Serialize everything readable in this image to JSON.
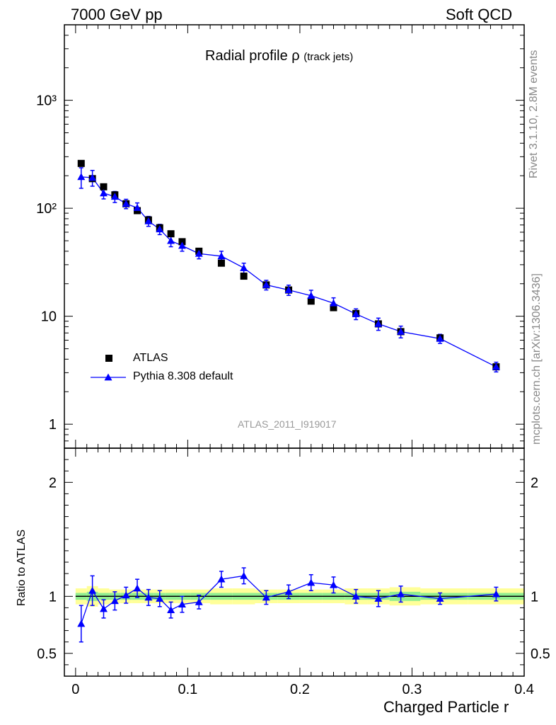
{
  "header": {
    "left": "7000 GeV pp",
    "right": "Soft QCD"
  },
  "side_text": {
    "rivet": "Rivet 3.1.10,  2.8M events",
    "mcplots": "mcplots.cern.ch [arXiv:1306.3436]"
  },
  "plot_title": {
    "main": "Radial profile ρ",
    "sub": "(track jets)"
  },
  "analysis_id": "ATLAS_2011_I919017",
  "legend": {
    "data_label": "ATLAS",
    "mc_label": "Pythia 8.308 default"
  },
  "ratio_ylabel": "Ratio to ATLAS",
  "xlabel": "Charged Particle r",
  "colors": {
    "mc": "#0000ff",
    "data": "#000000",
    "band_inner": "#90ee90",
    "band_outer": "#ffff99"
  },
  "chart_data": {
    "type": "scatter",
    "x_range": [
      -0.01,
      0.4
    ],
    "upper_y_range": [
      0.6,
      5000
    ],
    "upper_y_scale": "log",
    "ratio_y_range": [
      0.3,
      2.3
    ],
    "x_ticks": [
      "0",
      "0.1",
      "0.2",
      "0.3",
      "0.4"
    ],
    "upper_y_ticks": [
      "1",
      "10",
      "10²",
      "10³"
    ],
    "ratio_y_ticks": [
      "0.5",
      "1",
      "2"
    ],
    "x": [
      0.005,
      0.015,
      0.025,
      0.035,
      0.045,
      0.055,
      0.065,
      0.075,
      0.085,
      0.095,
      0.11,
      0.13,
      0.15,
      0.17,
      0.19,
      0.21,
      0.23,
      0.25,
      0.27,
      0.29,
      0.325,
      0.375
    ],
    "series": [
      {
        "name": "ATLAS",
        "values": [
          260,
          188,
          158,
          133,
          110,
          95,
          78,
          66,
          58,
          49,
          40,
          31,
          23.5,
          19.5,
          17.5,
          13.8,
          12.0,
          10.6,
          8.5,
          7.2,
          6.3,
          3.4
        ]
      },
      {
        "name": "Pythia 8.308 default",
        "values": [
          195,
          192,
          138,
          128,
          110,
          101,
          76,
          64,
          50,
          45,
          38,
          36,
          28,
          19.5,
          17.5,
          15.5,
          13.2,
          10.5,
          8.5,
          7.2,
          6.2,
          3.4
        ],
        "errors": [
          42,
          32,
          16,
          15,
          11,
          11,
          8,
          7,
          6,
          5,
          4,
          4,
          3,
          2,
          1.9,
          1.9,
          1.6,
          1.2,
          1.1,
          0.9,
          0.6,
          0.35
        ]
      }
    ],
    "ratio": {
      "values": [
        0.76,
        1.05,
        0.89,
        0.96,
        1.01,
        1.07,
        0.99,
        0.98,
        0.88,
        0.93,
        0.95,
        1.15,
        1.18,
        0.99,
        1.04,
        1.12,
        1.1,
        1.0,
        0.98,
        1.02,
        0.98,
        1.02
      ],
      "errors": [
        0.16,
        0.13,
        0.08,
        0.08,
        0.07,
        0.08,
        0.07,
        0.07,
        0.07,
        0.07,
        0.06,
        0.07,
        0.07,
        0.06,
        0.06,
        0.07,
        0.07,
        0.06,
        0.07,
        0.07,
        0.05,
        0.06
      ],
      "band_inner": [
        0.03,
        0.04,
        0.03,
        0.03,
        0.03,
        0.03,
        0.03,
        0.03,
        0.03,
        0.03,
        0.03,
        0.03,
        0.03,
        0.03,
        0.03,
        0.03,
        0.03,
        0.03,
        0.03,
        0.04,
        0.03,
        0.03
      ],
      "band_outer": [
        0.07,
        0.09,
        0.07,
        0.06,
        0.06,
        0.06,
        0.06,
        0.06,
        0.06,
        0.06,
        0.06,
        0.07,
        0.07,
        0.06,
        0.06,
        0.06,
        0.06,
        0.07,
        0.07,
        0.08,
        0.07,
        0.07
      ]
    }
  }
}
